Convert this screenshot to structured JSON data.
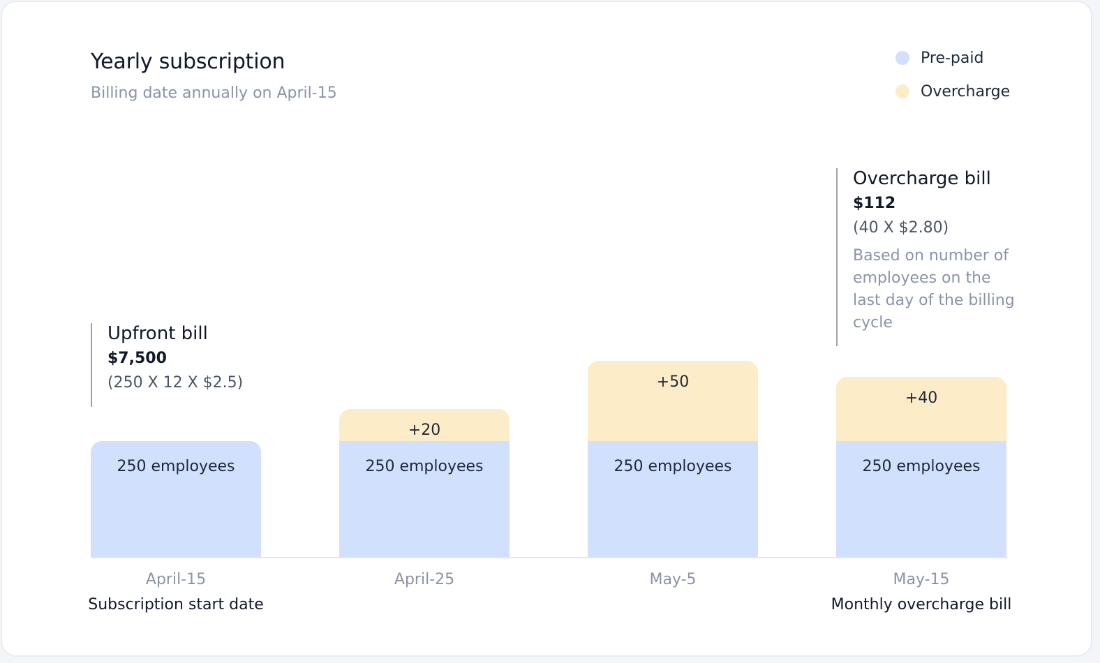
{
  "header": {
    "title": "Yearly subscription",
    "subtitle": "Billing date annually on April-15"
  },
  "legend": [
    {
      "label": "Pre-paid",
      "color": "#d1e0fd"
    },
    {
      "label": "Overcharge",
      "color": "#fdecc8"
    }
  ],
  "annotations": {
    "upfront": {
      "title": "Upfront bill",
      "amount": "$7,500",
      "formula": "(250 X 12 X $2.5)"
    },
    "overcharge": {
      "title": "Overcharge bill",
      "amount": "$112",
      "formula": "(40 X $2.80)",
      "note": "Based on number of employees on the last day of the billing cycle"
    }
  },
  "chart_data": {
    "type": "bar",
    "stacked": true,
    "categories": [
      "April-15",
      "April-25",
      "May-5",
      "May-15"
    ],
    "category_sublabels": [
      "Subscription start date",
      "",
      "",
      "Monthly overcharge bill"
    ],
    "series": [
      {
        "name": "Pre-paid",
        "color": "#d1e0fd",
        "values": [
          250,
          250,
          250,
          250
        ],
        "labels": [
          "250 employees",
          "250 employees",
          "250 employees",
          "250 employees"
        ]
      },
      {
        "name": "Overcharge",
        "color": "#fdecc8",
        "values": [
          0,
          20,
          50,
          40
        ],
        "labels": [
          "",
          "+20",
          "+50",
          "+40"
        ]
      }
    ],
    "grid": false,
    "legend_position": "top-right"
  }
}
